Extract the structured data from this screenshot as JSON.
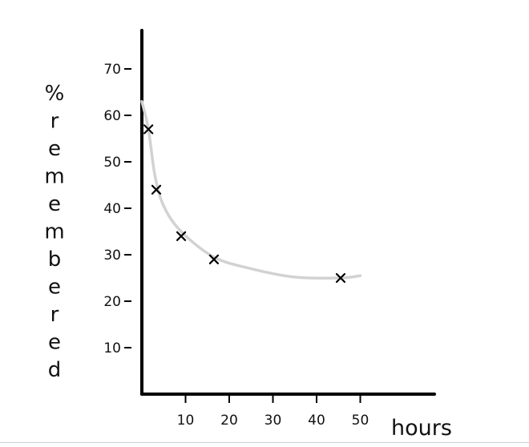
{
  "chart_data": {
    "type": "scatter",
    "title": "",
    "xlabel": "hours",
    "ylabel": "% remembered",
    "ylabel_glyphs": [
      "%",
      "r",
      "e",
      "m",
      "e",
      "m",
      "b",
      "e",
      "r",
      "e",
      "d"
    ],
    "x_ticks": [
      10,
      20,
      30,
      40,
      50
    ],
    "y_ticks": [
      10,
      20,
      30,
      40,
      50,
      60,
      70
    ],
    "xlim": [
      0,
      52
    ],
    "ylim": [
      0,
      78
    ],
    "grid": false,
    "legend": "none",
    "series": [
      {
        "marker": "x",
        "x": [
          1.5,
          3.3,
          9,
          16.5,
          45.5
        ],
        "y": [
          57,
          44,
          34,
          29,
          25
        ]
      }
    ],
    "trend_curve": {
      "color": "#d2d2d2",
      "x": [
        0,
        1.5,
        3,
        5,
        9,
        16.5,
        25,
        35,
        45.5,
        50
      ],
      "y": [
        63,
        57,
        47,
        40.5,
        35,
        29.5,
        27,
        25.2,
        25,
        25.5
      ]
    }
  }
}
